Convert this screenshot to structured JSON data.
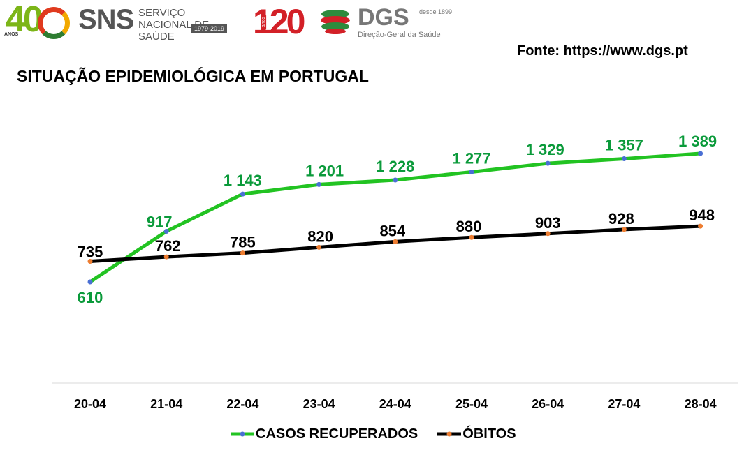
{
  "header": {
    "logo40_number": "40",
    "logo40_label": "ANOS",
    "sns_short": "SNS",
    "sns_full": "SERVIÇO NACIONAL DE SAÚDE",
    "sns_years": "1979-2019",
    "logo120_number": "120",
    "logo120_label": "anos",
    "dgs_short": "DGS",
    "dgs_since": "desde 1899",
    "dgs_full": "Direção-Geral da Saúde"
  },
  "source": "Fonte: https://www.dgs.pt",
  "colors": {
    "recovered": "#22c322",
    "deaths": "#000000",
    "recovered_marker": "#4a6fd4",
    "deaths_marker": "#ed7d31",
    "recovered_label": "#0a9a3a"
  },
  "chart_data": {
    "type": "line",
    "title": "SITUAÇÃO EPIDEMIOLÓGICA EM PORTUGAL",
    "categories": [
      "20-04",
      "21-04",
      "22-04",
      "23-04",
      "24-04",
      "25-04",
      "26-04",
      "27-04",
      "28-04"
    ],
    "series": [
      {
        "name": "CASOS RECUPERADOS",
        "values": [
          610,
          917,
          1143,
          1201,
          1228,
          1277,
          1329,
          1357,
          1389
        ],
        "labels": [
          "610",
          "917",
          "1 143",
          "1 201",
          "1 228",
          "1 277",
          "1 329",
          "1 357",
          "1 389"
        ]
      },
      {
        "name": "ÓBITOS",
        "values": [
          735,
          762,
          785,
          820,
          854,
          880,
          903,
          928,
          948
        ],
        "labels": [
          "735",
          "762",
          "785",
          "820",
          "854",
          "880",
          "903",
          "928",
          "948"
        ]
      }
    ],
    "xlabel": "",
    "ylabel": "",
    "ylim": [
      0,
      1500
    ],
    "grid": false,
    "legend_position": "bottom"
  }
}
